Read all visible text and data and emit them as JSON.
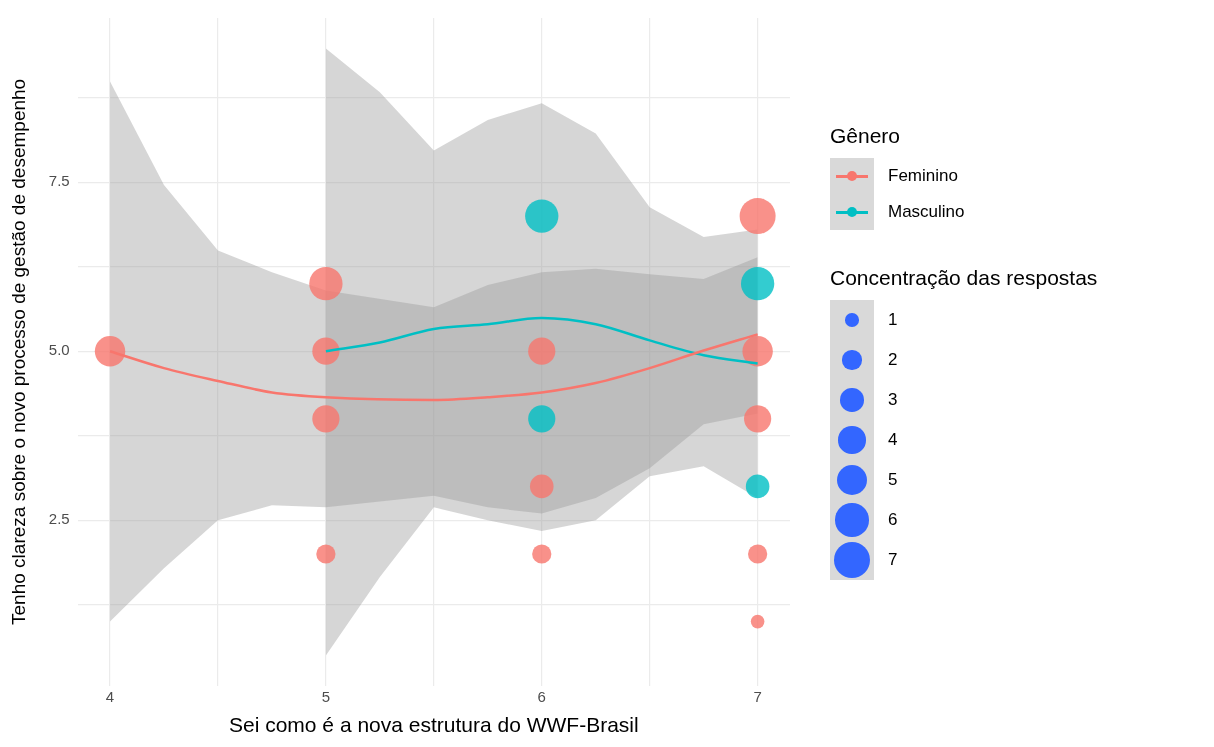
{
  "chart_data": {
    "type": "bubble",
    "xlabel": "Sei como é a nova estrutura do WWF-Brasil",
    "ylabel": "Tenho clareza sobre o novo processo de gestão de desempenho",
    "legend_title": [
      "Gênero",
      "Concentração das respostas"
    ],
    "legend": "right",
    "grid": true,
    "xlim": [
      3.85,
      7.15
    ],
    "xticks": [
      4,
      {
        "value": 4.5,
        "label": null
      },
      5,
      {
        "value": 5.5,
        "label": null
      },
      6,
      {
        "value": 6.5,
        "label": null
      },
      7
    ],
    "ylim": [
      0.05,
      9.93
    ],
    "yticks": [
      {
        "value": 1.25,
        "label": null
      },
      2.5,
      {
        "value": 3.75,
        "label": null
      },
      {
        "value": 5,
        "label": "5.0"
      },
      {
        "value": 6.25,
        "label": null
      },
      7.5,
      {
        "value": 8.75,
        "label": null
      }
    ],
    "size_legend": [
      1,
      2,
      3,
      4,
      5,
      6,
      7
    ],
    "series": [
      {
        "name": "Feminino",
        "color": "#f8766d",
        "x": [
          4,
          5,
          5,
          5,
          5,
          6,
          6,
          6,
          7,
          7,
          7,
          7,
          7
        ],
        "values": [
          5,
          6,
          5,
          4,
          2,
          5,
          3,
          2,
          7,
          5,
          4,
          2,
          1
        ],
        "sizes": [
          5,
          6,
          4,
          4,
          2,
          4,
          3,
          2,
          7,
          5,
          4,
          2,
          1
        ]
      },
      {
        "name": "Masculino",
        "color": "#00bfc4",
        "x": [
          6,
          6,
          7,
          7
        ],
        "values": [
          7,
          4,
          6,
          3
        ],
        "sizes": [
          6,
          4,
          6,
          3
        ]
      },
      {
        "type": "line",
        "color": "#f8766d",
        "x": [
          4,
          4.25,
          4.5,
          4.75,
          5,
          5.5,
          5.75,
          6,
          6.25,
          6.5,
          6.75,
          7
        ],
        "values": [
          5.0,
          4.75,
          4.56,
          4.39,
          4.32,
          4.28,
          4.32,
          4.39,
          4.53,
          4.75,
          5.01,
          5.25
        ],
        "lower": [
          1.0,
          1.79,
          2.5,
          2.72,
          2.69,
          2.86,
          2.69,
          2.6,
          2.83,
          3.27,
          3.92,
          4.08
        ],
        "upper": [
          8.99,
          7.46,
          6.49,
          6.17,
          5.9,
          5.65,
          5.98,
          6.17,
          6.22,
          6.14,
          6.07,
          6.39
        ]
      },
      {
        "type": "line",
        "color": "#00bfc4",
        "x": [
          5,
          5.25,
          5.5,
          5.75,
          6,
          6.25,
          6.5,
          6.75,
          7
        ],
        "values": [
          5.0,
          5.13,
          5.33,
          5.4,
          5.49,
          5.4,
          5.16,
          4.94,
          4.82
        ],
        "lower": [
          0.5,
          1.66,
          2.69,
          2.5,
          2.34,
          2.5,
          3.15,
          3.3,
          2.83
        ],
        "upper": [
          9.48,
          8.83,
          7.97,
          8.42,
          8.67,
          8.22,
          7.13,
          6.69,
          6.8
        ]
      }
    ]
  }
}
